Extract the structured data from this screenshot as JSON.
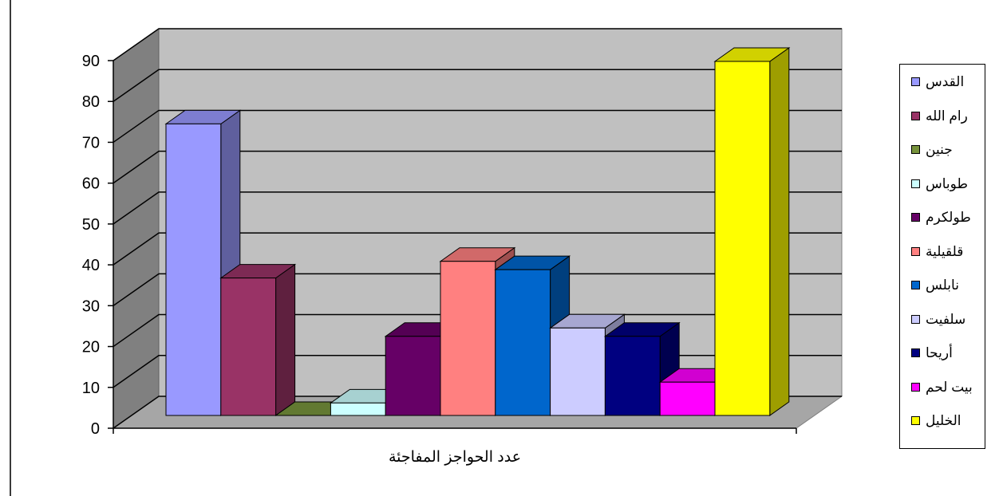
{
  "chart_data": {
    "type": "bar",
    "style": "3d-clustered",
    "title": "",
    "xlabel": "عدد الحواجز المفاجئة",
    "ylabel": "",
    "ylim": [
      0,
      90
    ],
    "yticks": [
      0,
      10,
      20,
      30,
      40,
      50,
      60,
      70,
      80,
      90
    ],
    "grid": true,
    "legend_position": "right",
    "series": [
      {
        "name": "القدس",
        "value": 70,
        "color": "#9999ff"
      },
      {
        "name": "رام الله",
        "value": 33,
        "color": "#993366"
      },
      {
        "name": "جنين",
        "value": 0,
        "color": "#77933c"
      },
      {
        "name": "طوباس",
        "value": 3,
        "color": "#ccffff"
      },
      {
        "name": "طولكرم",
        "value": 19,
        "color": "#660066"
      },
      {
        "name": "قلقيلية",
        "value": 37,
        "color": "#ff8080"
      },
      {
        "name": "نابلس",
        "value": 35,
        "color": "#0066cc"
      },
      {
        "name": "سلفيت",
        "value": 21,
        "color": "#ccccff"
      },
      {
        "name": "أريحا",
        "value": 19,
        "color": "#000080"
      },
      {
        "name": "بيت لحم",
        "value": 8,
        "color": "#ff00ff"
      },
      {
        "name": "الخليل",
        "value": 85,
        "color": "#ffff00"
      }
    ]
  }
}
